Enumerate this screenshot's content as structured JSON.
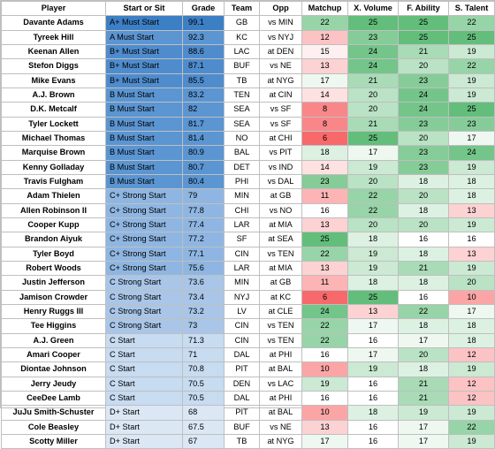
{
  "headers": [
    "Player",
    "Start or Sit",
    "Grade",
    "Team",
    "Opp",
    "Matchup",
    "X. Volume",
    "F. Ability",
    "S. Talent"
  ],
  "colors": {
    "aplus_must": "#3d7fc4",
    "must_start": "#5b95d2",
    "bplus_must": "#4f8cce",
    "c_plus_strong": "#8fb6e2",
    "c_strong": "#a9c6e8",
    "c_start": "#c7dbf1",
    "d_plus": "#dbe7f5",
    "white": "#ffffff"
  },
  "rows": [
    {
      "player": "Davante Adams",
      "sos": "A+ Must Start",
      "grade": "99.1",
      "team": "GB",
      "opp": "vs MIN",
      "matchup": "22",
      "volume": "25",
      "ability": "25",
      "talent": "22"
    },
    {
      "player": "Tyreek Hill",
      "sos": "A Must Start",
      "grade": "92.3",
      "team": "KC",
      "opp": "vs NYJ",
      "matchup": "12",
      "volume": "23",
      "ability": "25",
      "talent": "25"
    },
    {
      "player": "Keenan Allen",
      "sos": "B+ Must Start",
      "grade": "88.6",
      "team": "LAC",
      "opp": "at DEN",
      "matchup": "15",
      "volume": "24",
      "ability": "21",
      "talent": "19"
    },
    {
      "player": "Stefon Diggs",
      "sos": "B+ Must Start",
      "grade": "87.1",
      "team": "BUF",
      "opp": "vs NE",
      "matchup": "13",
      "volume": "24",
      "ability": "20",
      "talent": "22"
    },
    {
      "player": "Mike Evans",
      "sos": "B+ Must Start",
      "grade": "85.5",
      "team": "TB",
      "opp": "at NYG",
      "matchup": "17",
      "volume": "21",
      "ability": "23",
      "talent": "19"
    },
    {
      "player": "A.J. Brown",
      "sos": "B Must Start",
      "grade": "83.2",
      "team": "TEN",
      "opp": "at CIN",
      "matchup": "14",
      "volume": "20",
      "ability": "24",
      "talent": "19"
    },
    {
      "player": "D.K. Metcalf",
      "sos": "B Must Start",
      "grade": "82",
      "team": "SEA",
      "opp": "vs SF",
      "matchup": "8",
      "volume": "20",
      "ability": "24",
      "talent": "25"
    },
    {
      "player": "Tyler Lockett",
      "sos": "B Must Start",
      "grade": "81.7",
      "team": "SEA",
      "opp": "vs SF",
      "matchup": "8",
      "volume": "21",
      "ability": "23",
      "talent": "23"
    },
    {
      "player": "Michael Thomas",
      "sos": "B Must Start",
      "grade": "81.4",
      "team": "NO",
      "opp": "at CHI",
      "matchup": "6",
      "volume": "25",
      "ability": "20",
      "talent": "17"
    },
    {
      "player": "Marquise Brown",
      "sos": "B Must Start",
      "grade": "80.9",
      "team": "BAL",
      "opp": "vs PIT",
      "matchup": "18",
      "volume": "17",
      "ability": "23",
      "talent": "24"
    },
    {
      "player": "Kenny Golladay",
      "sos": "B Must Start",
      "grade": "80.7",
      "team": "DET",
      "opp": "vs IND",
      "matchup": "14",
      "volume": "19",
      "ability": "23",
      "talent": "19"
    },
    {
      "player": "Travis Fulgham",
      "sos": "B Must Start",
      "grade": "80.4",
      "team": "PHI",
      "opp": "vs DAL",
      "matchup": "23",
      "volume": "20",
      "ability": "18",
      "talent": "18"
    },
    {
      "player": "Adam Thielen",
      "sos": "C+ Strong Start",
      "grade": "79",
      "team": "MIN",
      "opp": "at GB",
      "matchup": "11",
      "volume": "22",
      "ability": "20",
      "talent": "18"
    },
    {
      "player": "Allen Robinson II",
      "sos": "C+ Strong Start",
      "grade": "77.8",
      "team": "CHI",
      "opp": "vs NO",
      "matchup": "16",
      "volume": "22",
      "ability": "18",
      "talent": "13"
    },
    {
      "player": "Cooper Kupp",
      "sos": "C+ Strong Start",
      "grade": "77.4",
      "team": "LAR",
      "opp": "at MIA",
      "matchup": "13",
      "volume": "20",
      "ability": "20",
      "talent": "19"
    },
    {
      "player": "Brandon Aiyuk",
      "sos": "C+ Strong Start",
      "grade": "77.2",
      "team": "SF",
      "opp": "at SEA",
      "matchup": "25",
      "volume": "18",
      "ability": "16",
      "talent": "16"
    },
    {
      "player": "Tyler Boyd",
      "sos": "C+ Strong Start",
      "grade": "77.1",
      "team": "CIN",
      "opp": "vs TEN",
      "matchup": "22",
      "volume": "19",
      "ability": "18",
      "talent": "13"
    },
    {
      "player": "Robert Woods",
      "sos": "C+ Strong Start",
      "grade": "75.6",
      "team": "LAR",
      "opp": "at MIA",
      "matchup": "13",
      "volume": "19",
      "ability": "21",
      "talent": "19"
    },
    {
      "player": "Justin Jefferson",
      "sos": "C Strong Start",
      "grade": "73.6",
      "team": "MIN",
      "opp": "at GB",
      "matchup": "11",
      "volume": "18",
      "ability": "18",
      "talent": "20"
    },
    {
      "player": "Jamison Crowder",
      "sos": "C Strong Start",
      "grade": "73.4",
      "team": "NYJ",
      "opp": "at KC",
      "matchup": "6",
      "volume": "25",
      "ability": "16",
      "talent": "10"
    },
    {
      "player": "Henry Ruggs III",
      "sos": "C Strong Start",
      "grade": "73.2",
      "team": "LV",
      "opp": "at CLE",
      "matchup": "24",
      "volume": "13",
      "ability": "22",
      "talent": "17"
    },
    {
      "player": "Tee Higgins",
      "sos": "C Strong Start",
      "grade": "73",
      "team": "CIN",
      "opp": "vs TEN",
      "matchup": "22",
      "volume": "17",
      "ability": "18",
      "talent": "18"
    },
    {
      "player": "A.J. Green",
      "sos": "C Start",
      "grade": "71.3",
      "team": "CIN",
      "opp": "vs TEN",
      "matchup": "22",
      "volume": "16",
      "ability": "17",
      "talent": "18"
    },
    {
      "player": "Amari Cooper",
      "sos": "C Start",
      "grade": "71",
      "team": "DAL",
      "opp": "at PHI",
      "matchup": "16",
      "volume": "17",
      "ability": "20",
      "talent": "12"
    },
    {
      "player": "Diontae Johnson",
      "sos": "C Start",
      "grade": "70.8",
      "team": "PIT",
      "opp": "at BAL",
      "matchup": "10",
      "volume": "19",
      "ability": "18",
      "talent": "19"
    },
    {
      "player": "Jerry Jeudy",
      "sos": "C Start",
      "grade": "70.5",
      "team": "DEN",
      "opp": "vs LAC",
      "matchup": "19",
      "volume": "16",
      "ability": "21",
      "talent": "12"
    },
    {
      "player": "CeeDee Lamb",
      "sos": "C Start",
      "grade": "70.5",
      "team": "DAL",
      "opp": "at PHI",
      "matchup": "16",
      "volume": "16",
      "ability": "21",
      "talent": "12"
    },
    {
      "player": "JuJu Smith-Schuster",
      "sos": "D+ Start",
      "grade": "68",
      "team": "PIT",
      "opp": "at BAL",
      "matchup": "10",
      "volume": "18",
      "ability": "19",
      "talent": "19"
    },
    {
      "player": "Cole Beasley",
      "sos": "D+ Start",
      "grade": "67.5",
      "team": "BUF",
      "opp": "vs NE",
      "matchup": "13",
      "volume": "16",
      "ability": "17",
      "talent": "22"
    },
    {
      "player": "Scotty Miller",
      "sos": "D+ Start",
      "grade": "67",
      "team": "TB",
      "opp": "at NYG",
      "matchup": "17",
      "volume": "16",
      "ability": "17",
      "talent": "19"
    }
  ]
}
